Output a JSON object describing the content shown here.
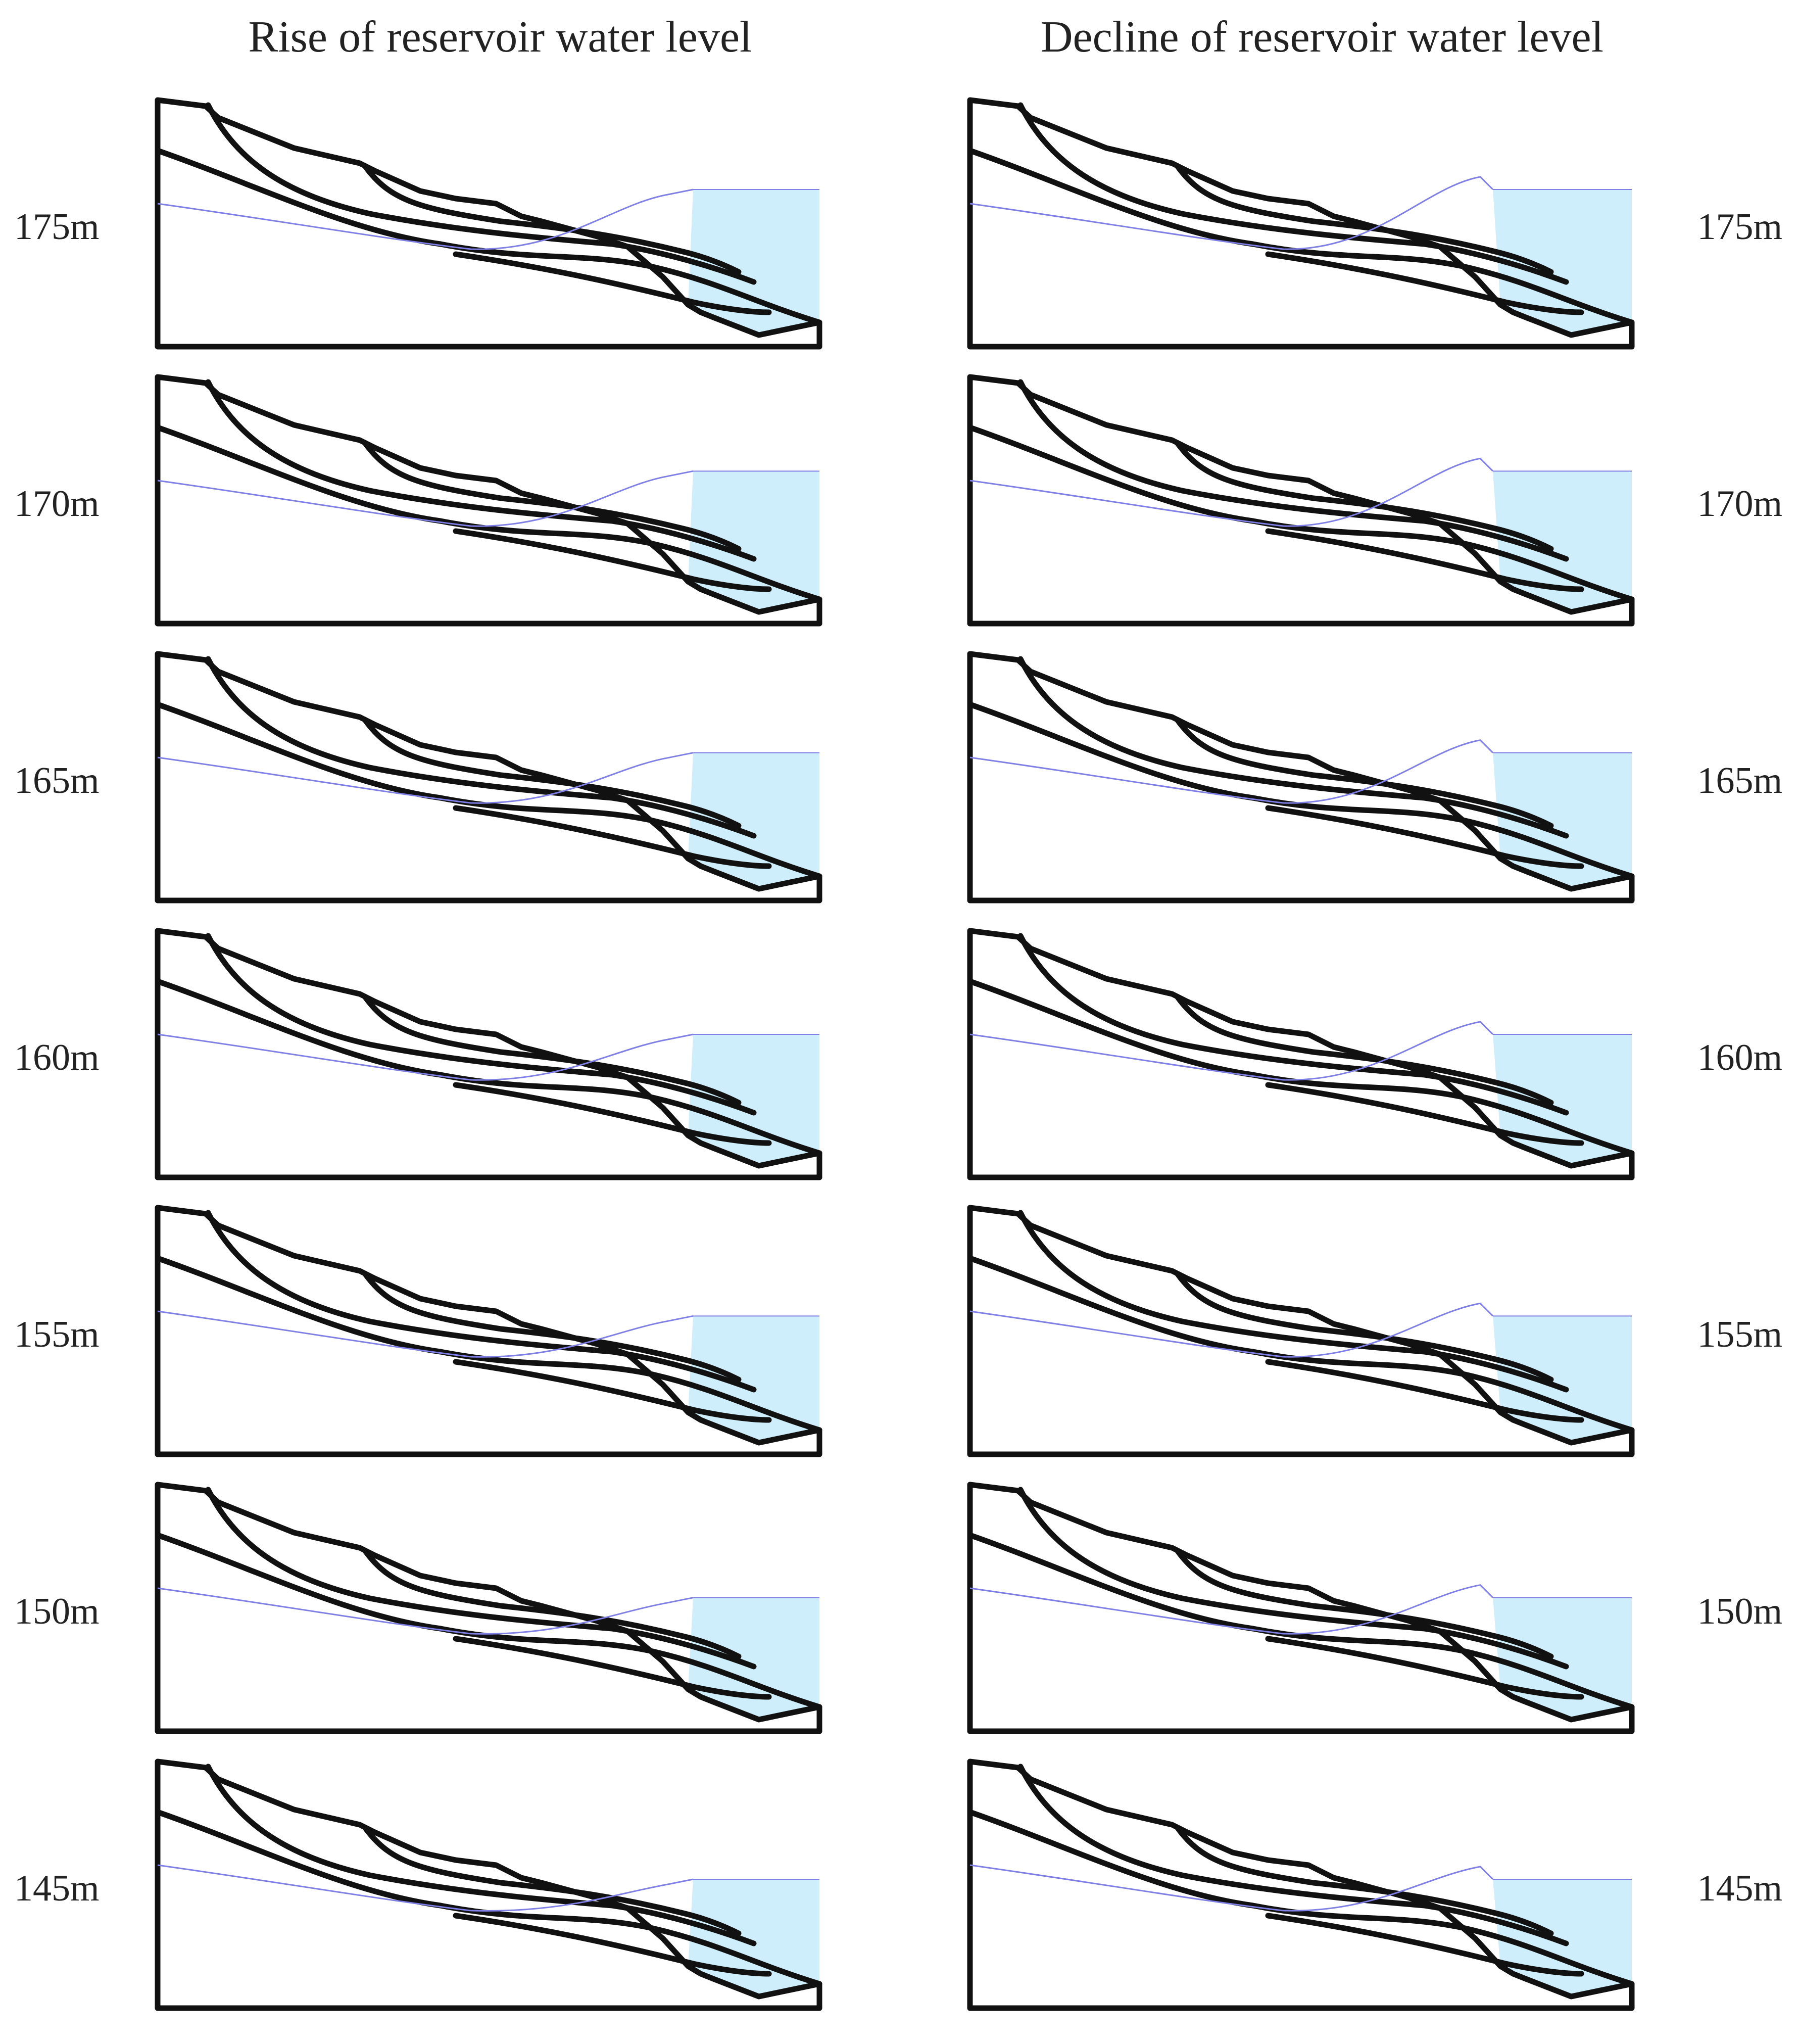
{
  "figure": {
    "titles": {
      "rise": "Rise of reservoir water level",
      "decline": "Decline of reservoir water level"
    },
    "rows": [
      {
        "level_label": "175m",
        "water_level_m": 175
      },
      {
        "level_label": "170m",
        "water_level_m": 170
      },
      {
        "level_label": "165m",
        "water_level_m": 165
      },
      {
        "level_label": "160m",
        "water_level_m": 160
      },
      {
        "level_label": "155m",
        "water_level_m": 155
      },
      {
        "level_label": "150m",
        "water_level_m": 150
      },
      {
        "level_label": "145m",
        "water_level_m": 145
      }
    ]
  },
  "colors": {
    "outline": "#111111",
    "water_fill": "#cdeefa",
    "phreatic_line": "#7f7fe6",
    "text": "#222222"
  }
}
